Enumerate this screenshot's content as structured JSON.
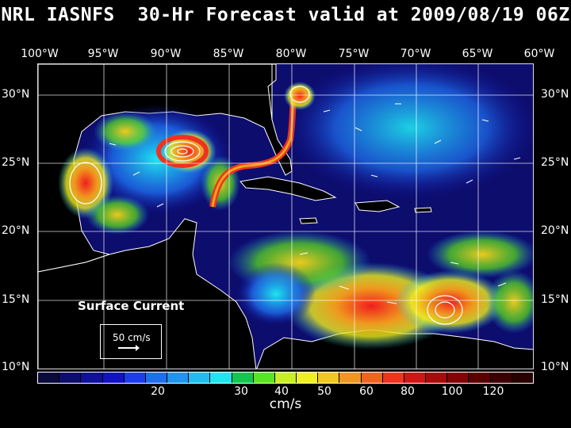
{
  "title": "NRL IASNFS  30-Hr Forecast valid at 2009/08/19 06Z",
  "lon_labels": [
    "100°W",
    "95°W",
    "90°W",
    "85°W",
    "80°W",
    "75°W",
    "70°W",
    "65°W",
    "60°W"
  ],
  "lat_labels": [
    "30°N",
    "25°N",
    "20°N",
    "15°N",
    "10°N"
  ],
  "overlay": {
    "field_label": "Surface Current",
    "reference_vector_label": "50 cm/s"
  },
  "colorbar": {
    "colors": [
      "#0a0a3c",
      "#0d0d6e",
      "#10109e",
      "#1212c8",
      "#1c3cf0",
      "#1e6ef0",
      "#1e96f0",
      "#1ebef0",
      "#1ee6f0",
      "#10c850",
      "#5ae61e",
      "#c8f01e",
      "#f0f01e",
      "#f0c81e",
      "#f0961e",
      "#f0641e",
      "#f0321e",
      "#d21414",
      "#aa0a0a",
      "#820505",
      "#5a0000",
      "#3c0000",
      "#280000"
    ],
    "tick_labels": [
      "20",
      "30",
      "40",
      "50",
      "60",
      "80",
      "100",
      "120"
    ],
    "units": "cm/s"
  },
  "map_colors": {
    "ocean_dark": "#05051e",
    "land": "#000000",
    "coast": "#ffffff",
    "grid": "#ffffff"
  }
}
